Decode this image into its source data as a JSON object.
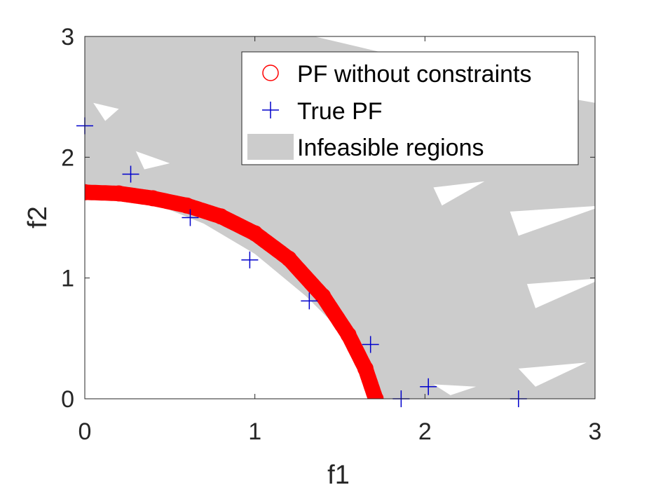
{
  "chart_data": {
    "type": "scatter",
    "title": "",
    "xlabel": "f1",
    "ylabel": "f2",
    "xlim": [
      0,
      3
    ],
    "ylim": [
      0,
      3
    ],
    "xticks": [
      "0",
      "1",
      "2",
      "3"
    ],
    "yticks": [
      "0",
      "1",
      "2",
      "3"
    ],
    "grid": false,
    "legend_position": "top-right",
    "series": [
      {
        "name": "PF without constraints",
        "marker": "circle",
        "color": "#ff0000",
        "x": [
          0,
          0.2,
          0.4,
          0.6,
          0.8,
          1.0,
          1.2,
          1.4,
          1.55,
          1.65,
          1.71
        ],
        "y": [
          1.71,
          1.7,
          1.66,
          1.6,
          1.51,
          1.37,
          1.16,
          0.85,
          0.53,
          0.25,
          0.0
        ]
      },
      {
        "name": "True PF",
        "marker": "plus",
        "color": "#0000cc",
        "x": [
          0.0,
          0.27,
          0.62,
          0.97,
          1.32,
          1.68,
          1.86,
          2.02,
          2.55
        ],
        "y": [
          2.26,
          1.86,
          1.5,
          1.15,
          0.81,
          0.45,
          0.0,
          0.1,
          0.0
        ]
      },
      {
        "name": "Infeasible regions",
        "marker": "area",
        "color": "#cccccc"
      }
    ]
  }
}
